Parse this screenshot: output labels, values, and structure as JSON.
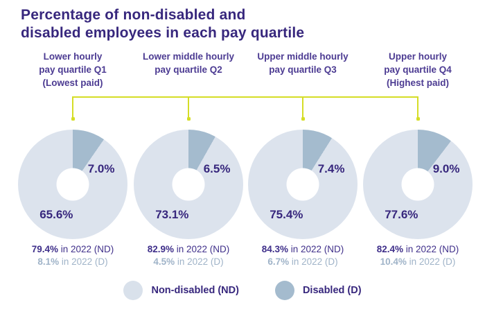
{
  "title": "Percentage of non-disabled and\ndisabled employees in each pay quartile",
  "colors": {
    "title_purple": "#37277d",
    "header_purple": "#4c3b92",
    "non_disabled_fill": "#dce3ed",
    "disabled_fill": "#a4bbce",
    "footnote_nd_purple": "#3f2f8a",
    "footnote_d_gray_blue": "#9fb3c8",
    "connector_chartreuse": "#d5dd26",
    "background": "#ffffff"
  },
  "legend": {
    "non_disabled_label": "Non-disabled (ND)",
    "disabled_label": "Disabled (D)"
  },
  "chart_data": {
    "type": "pie",
    "variant": "donut-small-multiples",
    "title": "Percentage of non-disabled and disabled employees in each pay quartile",
    "legend_entries": [
      "Non-disabled (ND)",
      "Disabled (D)"
    ],
    "legend_position": "bottom-center",
    "quartiles": [
      {
        "id": "Q1",
        "header": "Lower hourly\npay quartile Q1\n(Lowest paid)",
        "non_disabled_pct": 65.6,
        "disabled_pct": 7.0,
        "nd_label": "65.6%",
        "d_label": "7.0%",
        "footnote_nd_value": "79.4%",
        "footnote_nd_rest": " in 2022 (ND)",
        "footnote_d_value": "8.1%",
        "footnote_d_rest": " in 2022 (D)"
      },
      {
        "id": "Q2",
        "header": "Lower middle hourly\npay quartile Q2",
        "non_disabled_pct": 73.1,
        "disabled_pct": 6.5,
        "nd_label": "73.1%",
        "d_label": "6.5%",
        "footnote_nd_value": "82.9%",
        "footnote_nd_rest": " in 2022 (ND)",
        "footnote_d_value": "4.5%",
        "footnote_d_rest": " in 2022 (D)"
      },
      {
        "id": "Q3",
        "header": "Upper middle hourly\npay quartile Q3",
        "non_disabled_pct": 75.4,
        "disabled_pct": 7.4,
        "nd_label": "75.4%",
        "d_label": "7.4%",
        "footnote_nd_value": "84.3%",
        "footnote_nd_rest": " in 2022 (ND)",
        "footnote_d_value": "6.7%",
        "footnote_d_rest": " in 2022 (D)"
      },
      {
        "id": "Q4",
        "header": "Upper hourly\npay quartile Q4\n(Highest paid)",
        "non_disabled_pct": 77.6,
        "disabled_pct": 9.0,
        "nd_label": "77.6%",
        "d_label": "9.0%",
        "footnote_nd_value": "82.4%",
        "footnote_nd_rest": " in 2022 (ND)",
        "footnote_d_value": "10.4%",
        "footnote_d_rest": " in 2022 (D)"
      }
    ]
  }
}
